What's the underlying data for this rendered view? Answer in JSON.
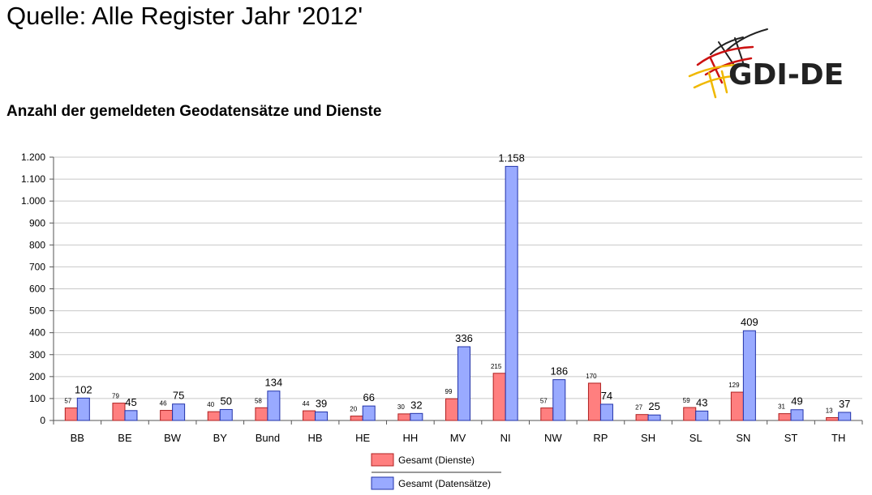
{
  "header": {
    "title": "Quelle: Alle Register Jahr '2012'",
    "logo_text": "GDI-DE"
  },
  "chart_data": {
    "type": "bar",
    "title": "Anzahl der gemeldeten Geodatensätze und Dienste",
    "xlabel": "",
    "ylabel": "",
    "ylim": [
      0,
      1200
    ],
    "yticks": [
      {
        "value": 0,
        "label": "0"
      },
      {
        "value": 100,
        "label": "100"
      },
      {
        "value": 200,
        "label": "200"
      },
      {
        "value": 300,
        "label": "300"
      },
      {
        "value": 400,
        "label": "400"
      },
      {
        "value": 500,
        "label": "500"
      },
      {
        "value": 600,
        "label": "600"
      },
      {
        "value": 700,
        "label": "700"
      },
      {
        "value": 800,
        "label": "800"
      },
      {
        "value": 900,
        "label": "900"
      },
      {
        "value": 1000,
        "label": "1.000"
      },
      {
        "value": 1100,
        "label": "1.100"
      },
      {
        "value": 1200,
        "label": "1.200"
      }
    ],
    "grid": true,
    "legend": "bottom",
    "categories": [
      "BB",
      "BE",
      "BW",
      "BY",
      "Bund",
      "HB",
      "HE",
      "HH",
      "MV",
      "NI",
      "NW",
      "RP",
      "SH",
      "SL",
      "SN",
      "ST",
      "TH"
    ],
    "series": [
      {
        "name": "Gesamt (Dienste)",
        "color": "#ff7f7f",
        "stroke": "#b02020",
        "values": [
          57,
          79,
          46,
          40,
          58,
          44,
          20,
          30,
          99,
          215,
          57,
          170,
          27,
          59,
          129,
          31,
          13
        ],
        "labels": [
          "57",
          "79",
          "46",
          "40",
          "58",
          "44",
          "20",
          "30",
          "99",
          "215",
          "57",
          "170",
          "27",
          "59",
          "129",
          "31",
          "13"
        ]
      },
      {
        "name": "Gesamt (Datensätze)",
        "color": "#99aaff",
        "stroke": "#2233aa",
        "values": [
          102,
          45,
          75,
          50,
          134,
          39,
          66,
          32,
          336,
          1158,
          186,
          74,
          25,
          43,
          409,
          49,
          37
        ],
        "labels": [
          "102",
          "45",
          "75",
          "50",
          "134",
          "39",
          "66",
          "32",
          "336",
          "1.158",
          "186",
          "74",
          "25",
          "43",
          "409",
          "49",
          "37"
        ]
      }
    ]
  }
}
